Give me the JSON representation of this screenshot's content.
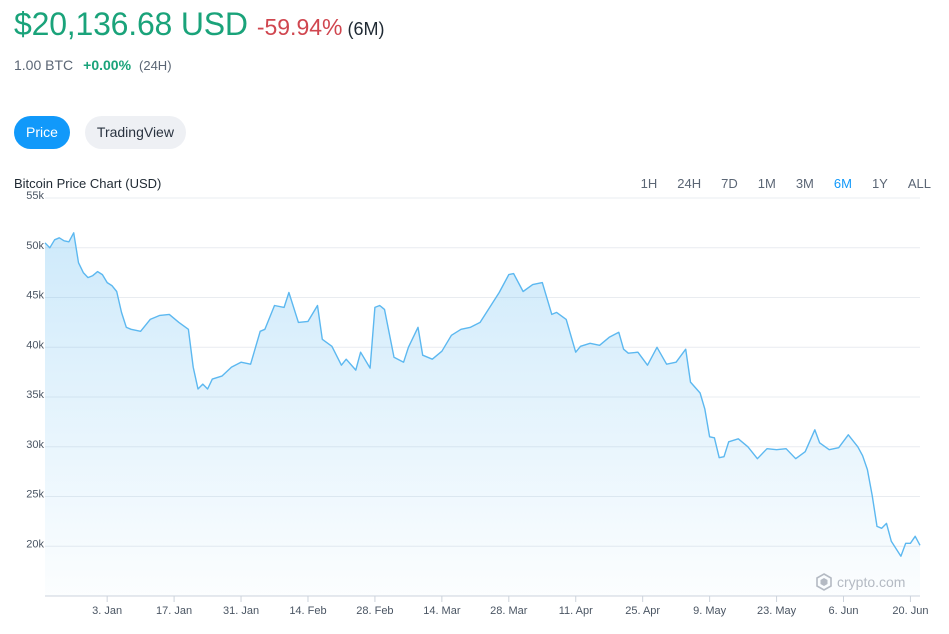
{
  "header": {
    "price": "$20,136.68 USD",
    "change": "-59.94%",
    "change_period": "(6M)",
    "btc_amount": "1.00 BTC",
    "btc_change": "+0.00%",
    "btc_change_period": "(24H)"
  },
  "tabs": [
    {
      "label": "Price",
      "active": true
    },
    {
      "label": "TradingView",
      "active": false
    }
  ],
  "chart_title": "Bitcoin Price Chart (USD)",
  "ranges": [
    {
      "label": "1H",
      "active": false
    },
    {
      "label": "24H",
      "active": false
    },
    {
      "label": "7D",
      "active": false
    },
    {
      "label": "1M",
      "active": false
    },
    {
      "label": "3M",
      "active": false
    },
    {
      "label": "6M",
      "active": true
    },
    {
      "label": "1Y",
      "active": false
    },
    {
      "label": "ALL",
      "active": false
    }
  ],
  "watermark": "crypto.com",
  "colors": {
    "accent": "#1199fa",
    "positive": "#1aa37a",
    "negative": "#d0464f",
    "line": "#5cb8f0"
  },
  "chart_data": {
    "type": "area",
    "title": "Bitcoin Price Chart (USD)",
    "ylim": [
      15000,
      55000
    ],
    "yticks": [
      20000,
      25000,
      30000,
      35000,
      40000,
      45000,
      50000,
      55000
    ],
    "ytick_labels": [
      "20k",
      "25k",
      "30k",
      "35k",
      "40k",
      "45k",
      "50k",
      "55k"
    ],
    "xlim": [
      "2021-12-21",
      "2022-06-22"
    ],
    "xtick_labels": [
      "3. Jan",
      "17. Jan",
      "31. Jan",
      "14. Feb",
      "28. Feb",
      "14. Mar",
      "28. Mar",
      "11. Apr",
      "25. Apr",
      "9. May",
      "23. May",
      "6. Jun",
      "20. Jun"
    ],
    "xtick_dates": [
      "2022-01-03",
      "2022-01-17",
      "2022-01-31",
      "2022-02-14",
      "2022-02-28",
      "2022-03-14",
      "2022-03-28",
      "2022-04-11",
      "2022-04-25",
      "2022-05-09",
      "2022-05-23",
      "2022-06-06",
      "2022-06-20"
    ],
    "series": [
      {
        "x": [
          "2021-12-21",
          "2021-12-22",
          "2021-12-23",
          "2021-12-24",
          "2021-12-25",
          "2021-12-26",
          "2021-12-27",
          "2021-12-28",
          "2021-12-29",
          "2021-12-30",
          "2021-12-31",
          "2022-01-01",
          "2022-01-02",
          "2022-01-03",
          "2022-01-04",
          "2022-01-05",
          "2022-01-06",
          "2022-01-07",
          "2022-01-08",
          "2022-01-10",
          "2022-01-12",
          "2022-01-14",
          "2022-01-16",
          "2022-01-18",
          "2022-01-20",
          "2022-01-21",
          "2022-01-22",
          "2022-01-23",
          "2022-01-24",
          "2022-01-25",
          "2022-01-27",
          "2022-01-29",
          "2022-01-31",
          "2022-02-02",
          "2022-02-04",
          "2022-02-05",
          "2022-02-07",
          "2022-02-09",
          "2022-02-10",
          "2022-02-12",
          "2022-02-14",
          "2022-02-16",
          "2022-02-17",
          "2022-02-19",
          "2022-02-21",
          "2022-02-22",
          "2022-02-24",
          "2022-02-25",
          "2022-02-27",
          "2022-02-28",
          "2022-03-01",
          "2022-03-02",
          "2022-03-04",
          "2022-03-06",
          "2022-03-07",
          "2022-03-09",
          "2022-03-10",
          "2022-03-12",
          "2022-03-14",
          "2022-03-16",
          "2022-03-18",
          "2022-03-20",
          "2022-03-22",
          "2022-03-24",
          "2022-03-26",
          "2022-03-28",
          "2022-03-29",
          "2022-03-31",
          "2022-04-02",
          "2022-04-04",
          "2022-04-06",
          "2022-04-07",
          "2022-04-09",
          "2022-04-11",
          "2022-04-12",
          "2022-04-14",
          "2022-04-16",
          "2022-04-18",
          "2022-04-20",
          "2022-04-21",
          "2022-04-22",
          "2022-04-24",
          "2022-04-26",
          "2022-04-28",
          "2022-04-30",
          "2022-05-02",
          "2022-05-04",
          "2022-05-05",
          "2022-05-07",
          "2022-05-08",
          "2022-05-09",
          "2022-05-10",
          "2022-05-11",
          "2022-05-12",
          "2022-05-13",
          "2022-05-15",
          "2022-05-17",
          "2022-05-19",
          "2022-05-21",
          "2022-05-23",
          "2022-05-25",
          "2022-05-27",
          "2022-05-29",
          "2022-05-31",
          "2022-06-01",
          "2022-06-03",
          "2022-06-05",
          "2022-06-07",
          "2022-06-09",
          "2022-06-10",
          "2022-06-11",
          "2022-06-12",
          "2022-06-13",
          "2022-06-14",
          "2022-06-15",
          "2022-06-16",
          "2022-06-18",
          "2022-06-19",
          "2022-06-20",
          "2022-06-21",
          "2022-06-22"
        ],
        "y": [
          50500,
          50000,
          50800,
          51000,
          50700,
          50600,
          51500,
          48500,
          47500,
          47000,
          47200,
          47600,
          47300,
          46500,
          46200,
          45600,
          43500,
          42000,
          41800,
          41600,
          42800,
          43200,
          43300,
          42500,
          41800,
          38000,
          35800,
          36300,
          35800,
          36800,
          37100,
          38000,
          38500,
          38300,
          41600,
          41800,
          44200,
          44000,
          45500,
          42500,
          42600,
          44200,
          40800,
          40100,
          38200,
          38800,
          37700,
          39500,
          37900,
          44000,
          44200,
          43800,
          39000,
          38500,
          40000,
          42000,
          39200,
          38800,
          39600,
          41200,
          41800,
          42000,
          42500,
          44000,
          45500,
          47300,
          47400,
          45600,
          46300,
          46500,
          43300,
          43500,
          42800,
          39500,
          40100,
          40400,
          40200,
          41000,
          41500,
          39800,
          39400,
          39500,
          38200,
          40000,
          38300,
          38500,
          39800,
          36500,
          35400,
          33800,
          31000,
          30900,
          28900,
          29000,
          30500,
          30800,
          30000,
          28800,
          29800,
          29700,
          29800,
          28800,
          29500,
          31700,
          30400,
          29700,
          29900,
          31200,
          30000,
          29100,
          27700,
          25100,
          22000,
          21800,
          22300,
          20500,
          19000,
          20300,
          20300,
          21000,
          20100
        ]
      }
    ]
  }
}
